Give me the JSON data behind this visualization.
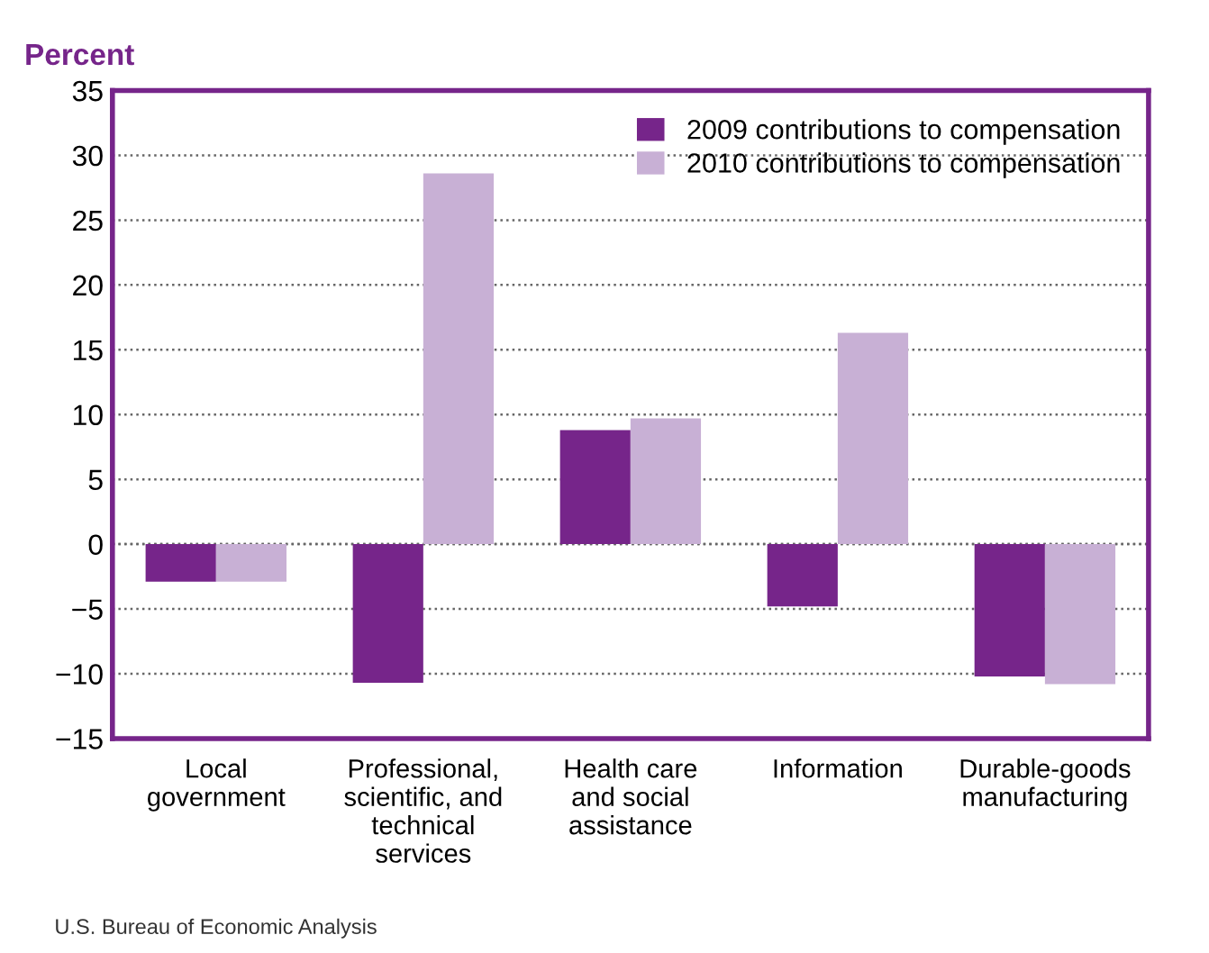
{
  "chart_data": {
    "type": "bar",
    "ylabel": "Percent",
    "categories": [
      "Local\ngovernment",
      "Professional,\nscientific, and\ntechnical\nservices",
      "Health care\nand social\nassistance",
      "Information",
      "Durable-goods\nmanufacturing"
    ],
    "series": [
      {
        "name": "2009 contributions to compensation",
        "color": "#76258a",
        "values": [
          -2.9,
          -10.7,
          8.8,
          -4.8,
          -10.2
        ]
      },
      {
        "name": "2010 contributions to compensation",
        "color": "#c8b0d5",
        "values": [
          -2.9,
          28.6,
          9.7,
          16.3,
          -10.8
        ]
      }
    ],
    "ylim": [
      -15,
      35
    ],
    "yticks": [
      {
        "value": -15,
        "label": "−15"
      },
      {
        "value": -10,
        "label": "−10"
      },
      {
        "value": -5,
        "label": "−5"
      },
      0,
      5,
      10,
      15,
      20,
      25,
      30,
      35
    ],
    "grid": "y",
    "legend": "top right",
    "annotations": [
      "U.S. Bureau of Economic Analysis"
    ]
  }
}
